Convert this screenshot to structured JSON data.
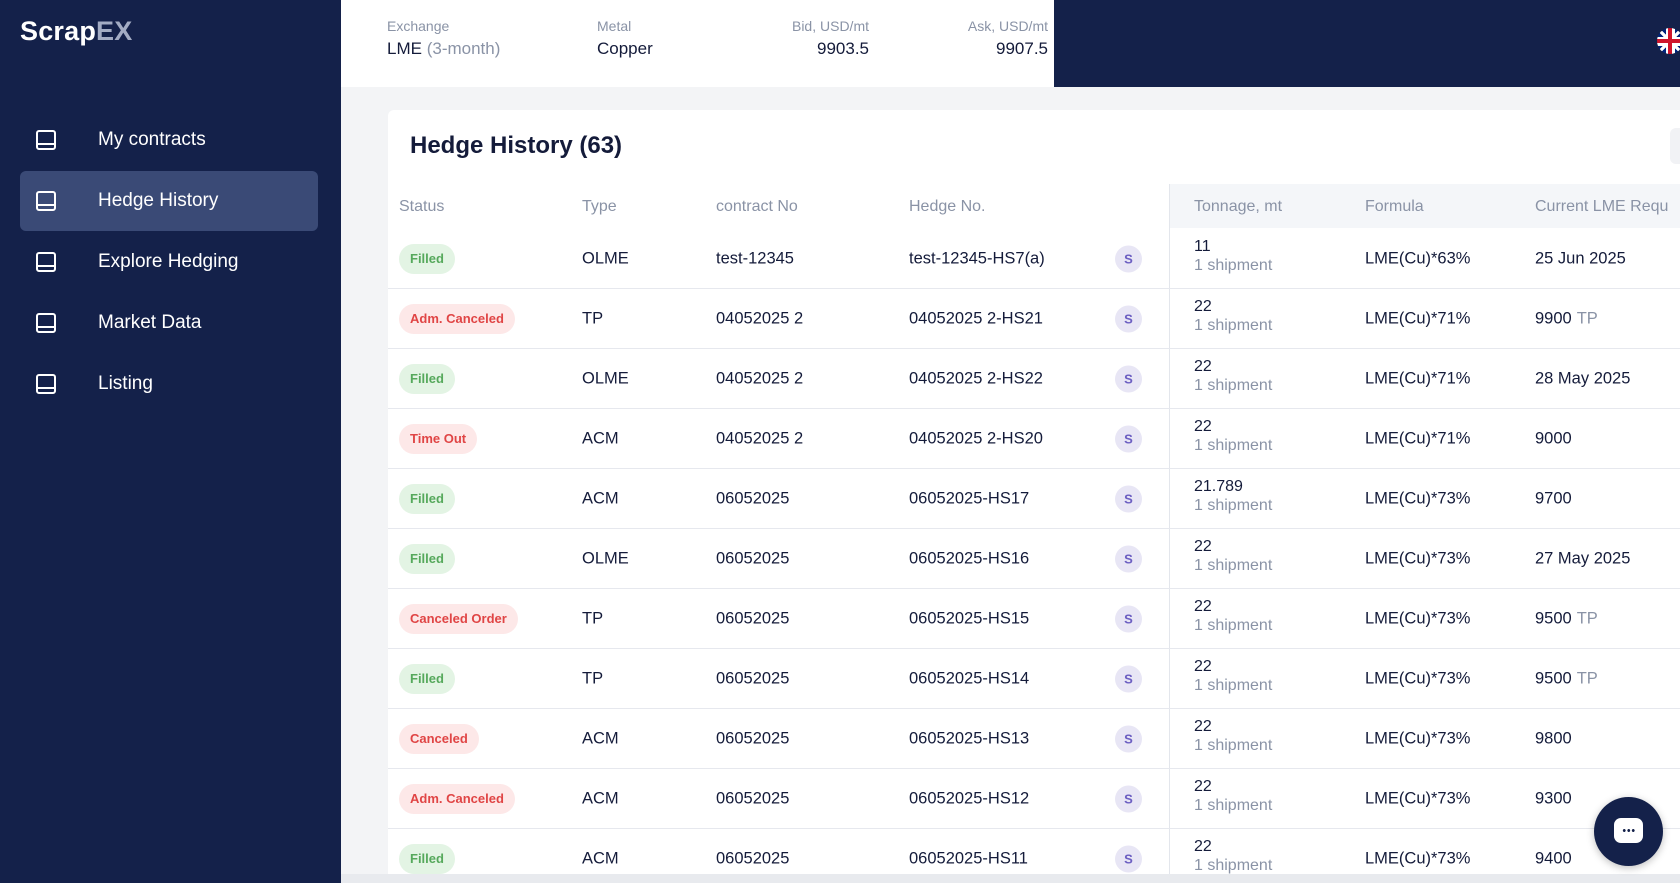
{
  "app": {
    "logo_main": "Scrap",
    "logo_accent": "EX"
  },
  "sidebar": {
    "items": [
      {
        "label": "My contracts",
        "icon": "inbox-icon",
        "active": false
      },
      {
        "label": "Hedge History",
        "icon": "inbox-icon",
        "active": true
      },
      {
        "label": "Explore Hedging",
        "icon": "inbox-icon",
        "active": false
      },
      {
        "label": "Market Data",
        "icon": "inbox-icon",
        "active": false
      },
      {
        "label": "Listing",
        "icon": "inbox-icon",
        "active": false
      }
    ]
  },
  "ticker": {
    "exchange_label": "Exchange",
    "exchange_value": "LME",
    "exchange_sub": "(3-month)",
    "metal_label": "Metal",
    "metal_value": "Copper",
    "bid_label": "Bid, USD/mt",
    "bid_value": "9903.5",
    "ask_label": "Ask, USD/mt",
    "ask_value": "9907.5"
  },
  "header_icons": {
    "language": "uk-flag-icon"
  },
  "table": {
    "title": "Hedge History (63)",
    "columns": {
      "status": "Status",
      "type": "Type",
      "contract": "contract No",
      "hedge": "Hedge No.",
      "tonnage": "Tonnage, mt",
      "formula": "Formula",
      "current": "Current LME Requ"
    },
    "rows": [
      {
        "status": "Filled",
        "status_kind": "ok",
        "type": "OLME",
        "contract": "test-12345",
        "hedge": "test-12345-HS7(a)",
        "avatar": "S",
        "tonnage": "11",
        "shipments": "1 shipment",
        "formula": "LME(Cu)*63%",
        "current": "25 Jun 2025",
        "current_suffix": ""
      },
      {
        "status": "Adm. Canceled",
        "status_kind": "bad",
        "type": "TP",
        "contract": "04052025 2",
        "hedge": "04052025 2-HS21",
        "avatar": "S",
        "tonnage": "22",
        "shipments": "1 shipment",
        "formula": "LME(Cu)*71%",
        "current": "9900",
        "current_suffix": "TP"
      },
      {
        "status": "Filled",
        "status_kind": "ok",
        "type": "OLME",
        "contract": "04052025 2",
        "hedge": "04052025 2-HS22",
        "avatar": "S",
        "tonnage": "22",
        "shipments": "1 shipment",
        "formula": "LME(Cu)*71%",
        "current": "28 May 2025",
        "current_suffix": ""
      },
      {
        "status": "Time Out",
        "status_kind": "bad",
        "type": "ACM",
        "contract": "04052025 2",
        "hedge": "04052025 2-HS20",
        "avatar": "S",
        "tonnage": "22",
        "shipments": "1 shipment",
        "formula": "LME(Cu)*71%",
        "current": "9000",
        "current_suffix": ""
      },
      {
        "status": "Filled",
        "status_kind": "ok",
        "type": "ACM",
        "contract": "06052025",
        "hedge": "06052025-HS17",
        "avatar": "S",
        "tonnage": "21.789",
        "shipments": "1 shipment",
        "formula": "LME(Cu)*73%",
        "current": "9700",
        "current_suffix": ""
      },
      {
        "status": "Filled",
        "status_kind": "ok",
        "type": "OLME",
        "contract": "06052025",
        "hedge": "06052025-HS16",
        "avatar": "S",
        "tonnage": "22",
        "shipments": "1 shipment",
        "formula": "LME(Cu)*73%",
        "current": "27 May 2025",
        "current_suffix": ""
      },
      {
        "status": "Canceled Order",
        "status_kind": "bad",
        "type": "TP",
        "contract": "06052025",
        "hedge": "06052025-HS15",
        "avatar": "S",
        "tonnage": "22",
        "shipments": "1 shipment",
        "formula": "LME(Cu)*73%",
        "current": "9500",
        "current_suffix": "TP"
      },
      {
        "status": "Filled",
        "status_kind": "ok",
        "type": "TP",
        "contract": "06052025",
        "hedge": "06052025-HS14",
        "avatar": "S",
        "tonnage": "22",
        "shipments": "1 shipment",
        "formula": "LME(Cu)*73%",
        "current": "9500",
        "current_suffix": "TP"
      },
      {
        "status": "Canceled",
        "status_kind": "bad",
        "type": "ACM",
        "contract": "06052025",
        "hedge": "06052025-HS13",
        "avatar": "S",
        "tonnage": "22",
        "shipments": "1 shipment",
        "formula": "LME(Cu)*73%",
        "current": "9800",
        "current_suffix": ""
      },
      {
        "status": "Adm. Canceled",
        "status_kind": "bad",
        "type": "ACM",
        "contract": "06052025",
        "hedge": "06052025-HS12",
        "avatar": "S",
        "tonnage": "22",
        "shipments": "1 shipment",
        "formula": "LME(Cu)*73%",
        "current": "9300",
        "current_suffix": ""
      },
      {
        "status": "Filled",
        "status_kind": "ok",
        "type": "ACM",
        "contract": "06052025",
        "hedge": "06052025-HS11",
        "avatar": "S",
        "tonnage": "22",
        "shipments": "1 shipment",
        "formula": "LME(Cu)*73%",
        "current": "9400",
        "current_suffix": ""
      }
    ]
  },
  "chat": {
    "icon": "chat-bubble-icon"
  }
}
